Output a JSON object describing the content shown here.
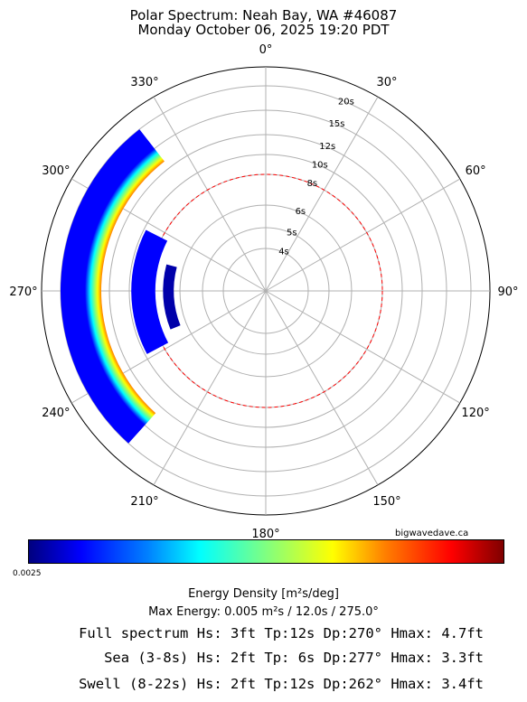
{
  "title": {
    "line1": "Polar Spectrum: Neah Bay, WA #46087",
    "line2": "Monday October 06, 2025 19:20 PDT"
  },
  "chart_data": {
    "type": "polar-spectrum",
    "direction_convention": "compass, 0° at top, clockwise",
    "angle_ticks": [
      "0°",
      "30°",
      "60°",
      "90°",
      "120°",
      "150°",
      "180°",
      "210°",
      "240°",
      "270°",
      "300°",
      "330°"
    ],
    "radial_ticks": [
      {
        "label": "4s",
        "period": 4
      },
      {
        "label": "5s",
        "period": 5
      },
      {
        "label": "6s",
        "period": 6
      },
      {
        "label": "8s",
        "period": 8
      },
      {
        "label": "10s",
        "period": 10
      },
      {
        "label": "12s",
        "period": 12
      },
      {
        "label": "15s",
        "period": 15
      },
      {
        "label": "20s",
        "period": 20
      }
    ],
    "sea_swell_boundary_period": 8,
    "energy_lobes": [
      {
        "period_min": 13.0,
        "period_max": 20.0,
        "dir_min": 222,
        "dir_max": 322,
        "peak_dir": 270,
        "peak_period": 15.7
      },
      {
        "period_min": 7.6,
        "period_max": 9.8,
        "dir_min": 242,
        "dir_max": 297,
        "peak_dir": 270,
        "peak_period": 8.7
      },
      {
        "period_min": 6.4,
        "period_max": 7.1,
        "dir_min": 248,
        "dir_max": 285,
        "peak_dir": 268,
        "peak_period": 6.8
      }
    ],
    "colorbar": {
      "label": "Energy Density [m²s/deg]",
      "min_label": "0.0025",
      "colormap": "jet"
    },
    "grid": true
  },
  "credit": "bigwavedave.ca",
  "max_energy": "Max Energy: 0.005 m²s  /  12.0s  /  275.0°",
  "stats": {
    "full": "Full spectrum Hs: 3ft Tp:12s Dp:270° Hmax: 4.7ft",
    "sea": "Sea (3-8s) Hs: 2ft Tp: 6s Dp:277° Hmax: 3.3ft",
    "swell": "Swell (8-22s) Hs: 2ft Tp:12s Dp:262° Hmax: 3.4ft"
  }
}
